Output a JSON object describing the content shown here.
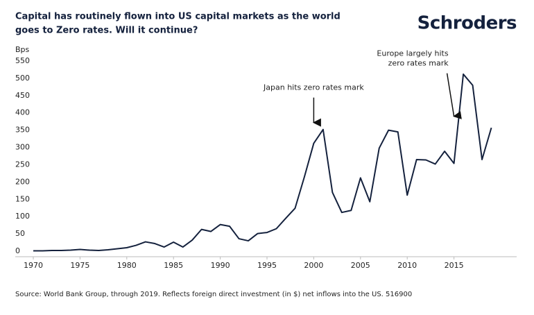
{
  "chart_data": {
    "type": "line",
    "title": [
      "Capital has routinely flown into US capital markets as the world",
      "goes to Zero rates. Will it continue?"
    ],
    "brand": "Schroders",
    "y_label": "Bps",
    "source": "Source: World Bank Group, through 2019. Reflects foreign direct investment (in $) net inflows into the US. 516900",
    "x": [
      1970,
      1971,
      1972,
      1973,
      1974,
      1975,
      1976,
      1977,
      1978,
      1979,
      1980,
      1981,
      1982,
      1983,
      1984,
      1985,
      1986,
      1987,
      1988,
      1989,
      1990,
      1991,
      1992,
      1993,
      1994,
      1995,
      1996,
      1997,
      1998,
      1999,
      2000,
      2001,
      2002,
      2003,
      2004,
      2005,
      2006,
      2007,
      2008,
      2009,
      2010,
      2011,
      2012,
      2013,
      2014,
      2015,
      2016,
      2017,
      2018,
      2019
    ],
    "series": [
      {
        "color": "#14213d",
        "values": [
          1,
          1,
          2,
          2,
          3,
          5,
          3,
          2,
          4,
          7,
          10,
          17,
          27,
          22,
          12,
          26,
          12,
          32,
          63,
          57,
          77,
          72,
          36,
          30,
          51,
          54,
          65,
          95,
          124,
          215,
          312,
          352,
          170,
          112,
          118,
          212,
          143,
          298,
          350,
          345,
          162,
          265,
          264,
          252,
          289,
          254,
          512,
          480,
          265,
          357
        ]
      }
    ],
    "xlim": [
      1970,
      2020
    ],
    "xticks": [
      1970,
      1975,
      1980,
      1985,
      1990,
      1995,
      2000,
      2005,
      2010,
      2015
    ],
    "ylim": [
      0,
      550
    ],
    "yticks": [
      0,
      50,
      100,
      150,
      200,
      250,
      300,
      350,
      400,
      450,
      500,
      550
    ],
    "grid": false,
    "annotations": [
      {
        "lines": [
          "Japan hits zero rates mark"
        ],
        "x": 2000,
        "y": 352
      },
      {
        "lines": [
          "Europe largely hits",
          "zero rates mark"
        ],
        "x": 2015,
        "y": 370
      }
    ]
  }
}
